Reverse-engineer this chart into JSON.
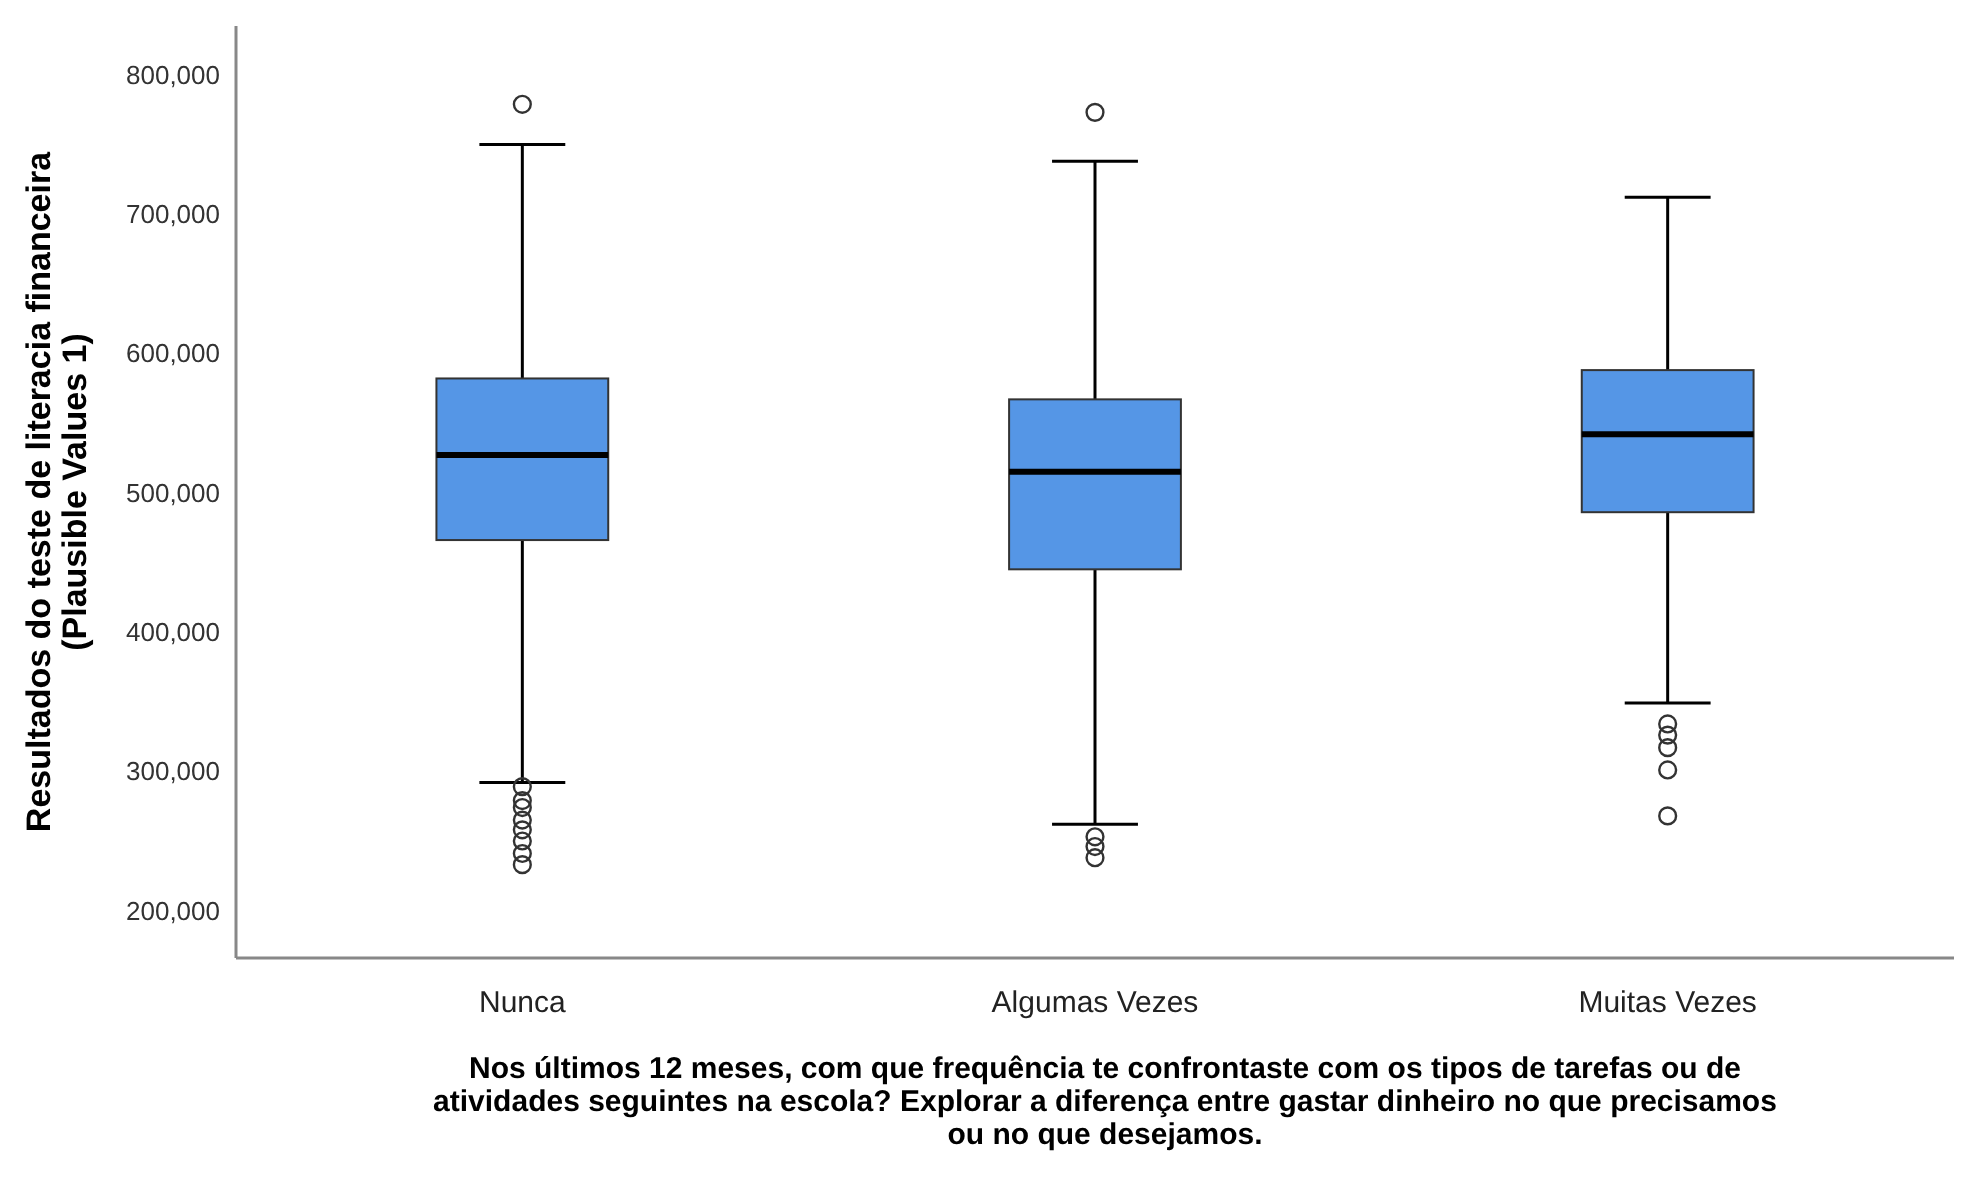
{
  "chart_data": {
    "type": "box",
    "xlabel": "Nos últimos 12 meses, com que frequência te confrontaste com os tipos de tarefas ou de atividades seguintes na escola? Explorar a diferença entre gastar dinheiro no que precisamos ou no que desejamos.",
    "ylabel": "Resultados do teste de literacia financeira (Plausible Values 1)",
    "categories": [
      "Nunca",
      "Algumas Vezes",
      "Muitas Vezes"
    ],
    "color": "#5596e6",
    "ylim": [
      166000,
      835000
    ],
    "yticks": [
      {
        "value": 200000,
        "label": "200,000"
      },
      {
        "value": 300000,
        "label": "300,000"
      },
      {
        "value": 400000,
        "label": "400,000"
      },
      {
        "value": 500000,
        "label": "500,000"
      },
      {
        "value": 600000,
        "label": "600,000"
      },
      {
        "value": 700000,
        "label": "700,000"
      },
      {
        "value": 800000,
        "label": "800,000"
      }
    ],
    "grid": false,
    "boxes": [
      {
        "low": 292000,
        "q1": 466000,
        "median": 527000,
        "q3": 582000,
        "high": 750000,
        "outliers": [
          778800,
          289000,
          279000,
          274000,
          265000,
          258000,
          250000,
          241000,
          233000
        ]
      },
      {
        "low": 262000,
        "q1": 445000,
        "median": 515000,
        "q3": 567000,
        "high": 738000,
        "outliers": [
          773000,
          253000,
          246000,
          238000
        ]
      },
      {
        "low": 349000,
        "q1": 486000,
        "median": 542000,
        "q3": 588000,
        "high": 712000,
        "outliers": [
          334000,
          326000,
          317000,
          301000,
          268000
        ]
      }
    ]
  }
}
